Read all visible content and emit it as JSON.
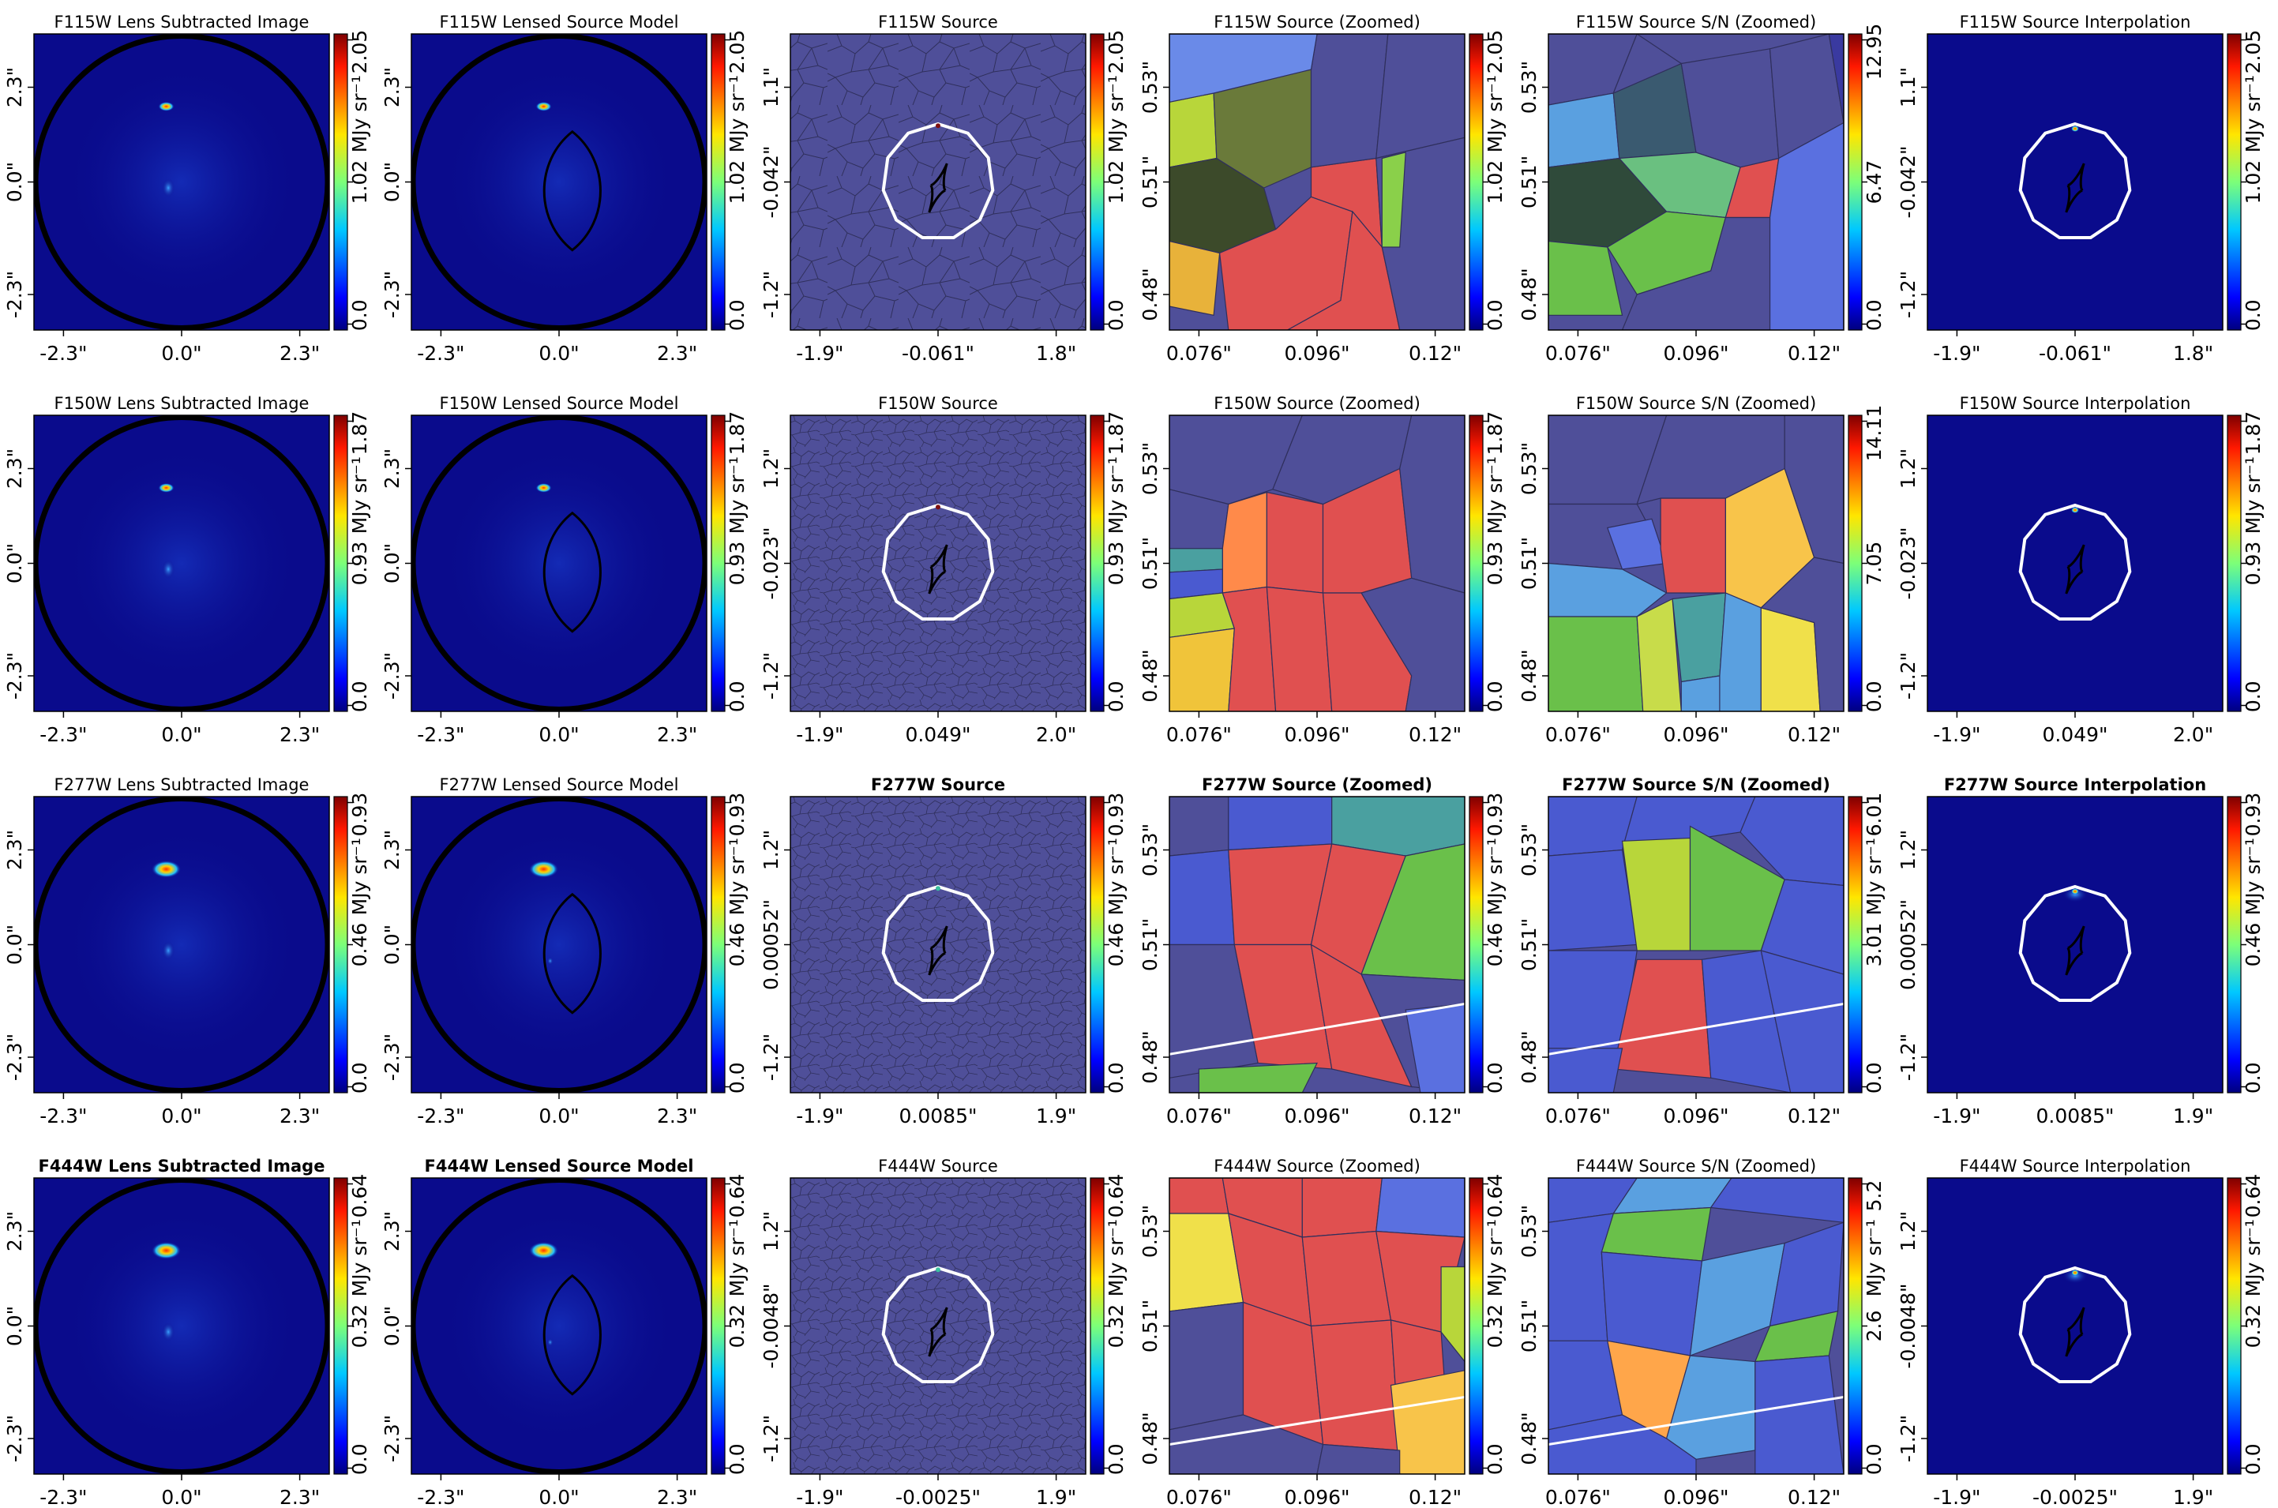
{
  "figure": {
    "rows": [
      {
        "band": "F115W",
        "panels": [
          {
            "title": "F115W Lens Subtracted Image",
            "bold": false,
            "kind": "image",
            "xticks": [
              "-2.3\"",
              "0.0\"",
              "2.3\""
            ],
            "yticks": [
              "2.3\"",
              "0.0\"",
              "-2.3\""
            ],
            "cbar": {
              "max": "2.05",
              "mid": "1.02",
              "min": "0.0",
              "label": "MJy sr⁻¹"
            }
          },
          {
            "title": "F115W Lensed Source Model",
            "bold": false,
            "kind": "model",
            "xticks": [
              "-2.3\"",
              "0.0\"",
              "2.3\""
            ],
            "yticks": [
              "2.3\"",
              "0.0\"",
              "-2.3\""
            ],
            "cbar": {
              "max": "2.05",
              "mid": "1.02",
              "min": "0.0",
              "label": "MJy sr⁻¹"
            }
          },
          {
            "title": "F115W Source",
            "bold": false,
            "kind": "source",
            "xticks": [
              "-1.9\"",
              "-0.061\"",
              "1.8\""
            ],
            "yticks": [
              "1.1\"",
              "-0.042\"",
              "-1.2\""
            ],
            "cbar": {
              "max": "2.05",
              "mid": "1.02",
              "min": "0.0",
              "label": "MJy sr⁻¹"
            }
          },
          {
            "title": "F115W Source (Zoomed)",
            "bold": false,
            "kind": "zoom",
            "xticks": [
              "0.076\"",
              "0.096\"",
              "0.12\""
            ],
            "yticks": [
              "0.53\"",
              "0.51\"",
              "0.48\""
            ],
            "cbar": {
              "max": "2.05",
              "mid": "1.02",
              "min": "0.0",
              "label": "MJy sr⁻¹"
            }
          },
          {
            "title": "F115W Source S/N (Zoomed)",
            "bold": false,
            "kind": "zoom",
            "xticks": [
              "0.076\"",
              "0.096\"",
              "0.12\""
            ],
            "yticks": [
              "0.53\"",
              "0.51\"",
              "0.48\""
            ],
            "cbar": {
              "max": "12.95",
              "mid": "6.47",
              "min": "0.0",
              "label": ""
            }
          },
          {
            "title": "F115W Source Interpolation",
            "bold": false,
            "kind": "interp",
            "xticks": [
              "-1.9\"",
              "-0.061\"",
              "1.8\""
            ],
            "yticks": [
              "1.1\"",
              "-0.042\"",
              "-1.2\""
            ],
            "cbar": {
              "max": "2.05",
              "mid": "1.02",
              "min": "0.0",
              "label": "MJy sr⁻¹"
            }
          }
        ]
      },
      {
        "band": "F150W",
        "panels": [
          {
            "title": "F150W Lens Subtracted Image",
            "bold": false,
            "kind": "image",
            "xticks": [
              "-2.3\"",
              "0.0\"",
              "2.3\""
            ],
            "yticks": [
              "2.3\"",
              "0.0\"",
              "-2.3\""
            ],
            "cbar": {
              "max": "1.87",
              "mid": "0.93",
              "min": "0.0",
              "label": "MJy sr⁻¹"
            }
          },
          {
            "title": "F150W Lensed Source Model",
            "bold": false,
            "kind": "model",
            "xticks": [
              "-2.3\"",
              "0.0\"",
              "2.3\""
            ],
            "yticks": [
              "2.3\"",
              "0.0\"",
              "-2.3\""
            ],
            "cbar": {
              "max": "1.87",
              "mid": "0.93",
              "min": "0.0",
              "label": "MJy sr⁻¹"
            }
          },
          {
            "title": "F150W Source",
            "bold": false,
            "kind": "source",
            "xticks": [
              "-1.9\"",
              "0.049\"",
              "2.0\""
            ],
            "yticks": [
              "1.2\"",
              "-0.023\"",
              "-1.2\""
            ],
            "cbar": {
              "max": "1.87",
              "mid": "0.93",
              "min": "0.0",
              "label": "MJy sr⁻¹"
            }
          },
          {
            "title": "F150W Source (Zoomed)",
            "bold": false,
            "kind": "zoom",
            "xticks": [
              "0.076\"",
              "0.096\"",
              "0.12\""
            ],
            "yticks": [
              "0.53\"",
              "0.51\"",
              "0.48\""
            ],
            "cbar": {
              "max": "1.87",
              "mid": "0.93",
              "min": "0.0",
              "label": "MJy sr⁻¹"
            }
          },
          {
            "title": "F150W Source S/N (Zoomed)",
            "bold": false,
            "kind": "zoom",
            "xticks": [
              "0.076\"",
              "0.096\"",
              "0.12\""
            ],
            "yticks": [
              "0.53\"",
              "0.51\"",
              "0.48\""
            ],
            "cbar": {
              "max": "14.11",
              "mid": "7.05",
              "min": "0.0",
              "label": ""
            }
          },
          {
            "title": "F150W Source Interpolation",
            "bold": false,
            "kind": "interp",
            "xticks": [
              "-1.9\"",
              "0.049\"",
              "2.0\""
            ],
            "yticks": [
              "1.2\"",
              "-0.023\"",
              "-1.2\""
            ],
            "cbar": {
              "max": "1.87",
              "mid": "0.93",
              "min": "0.0",
              "label": "MJy sr⁻¹"
            }
          }
        ]
      },
      {
        "band": "F277W",
        "panels": [
          {
            "title": "F277W Lens Subtracted Image",
            "bold": false,
            "kind": "image",
            "xticks": [
              "-2.3\"",
              "0.0\"",
              "2.3\""
            ],
            "yticks": [
              "2.3\"",
              "0.0\"",
              "-2.3\""
            ],
            "cbar": {
              "max": "0.93",
              "mid": "0.46",
              "min": "0.0",
              "label": "MJy sr⁻¹"
            }
          },
          {
            "title": "F277W Lensed Source Model",
            "bold": false,
            "kind": "model",
            "xticks": [
              "-2.3\"",
              "0.0\"",
              "2.3\""
            ],
            "yticks": [
              "2.3\"",
              "0.0\"",
              "-2.3\""
            ],
            "cbar": {
              "max": "0.93",
              "mid": "0.46",
              "min": "0.0",
              "label": "MJy sr⁻¹"
            }
          },
          {
            "title": "F277W Source",
            "bold": true,
            "kind": "source",
            "xticks": [
              "-1.9\"",
              "0.0085\"",
              "1.9\""
            ],
            "yticks": [
              "1.2\"",
              "0.00052\"",
              "-1.2\""
            ],
            "cbar": {
              "max": "0.93",
              "mid": "0.46",
              "min": "0.0",
              "label": "MJy sr⁻¹"
            }
          },
          {
            "title": "F277W Source (Zoomed)",
            "bold": true,
            "kind": "zoom",
            "xticks": [
              "0.076\"",
              "0.096\"",
              "0.12\""
            ],
            "yticks": [
              "0.53\"",
              "0.51\"",
              "0.48\""
            ],
            "cbar": {
              "max": "0.93",
              "mid": "0.46",
              "min": "0.0",
              "label": "MJy sr⁻¹"
            }
          },
          {
            "title": "F277W Source S/N (Zoomed)",
            "bold": true,
            "kind": "zoom",
            "xticks": [
              "0.076\"",
              "0.096\"",
              "0.12\""
            ],
            "yticks": [
              "0.53\"",
              "0.51\"",
              "0.48\""
            ],
            "cbar": {
              "max": "6.01",
              "mid": "3.01",
              "min": "0.0",
              "label": "MJy sr⁻¹"
            }
          },
          {
            "title": "F277W Source Interpolation",
            "bold": true,
            "kind": "interp",
            "xticks": [
              "-1.9\"",
              "0.0085\"",
              "1.9\""
            ],
            "yticks": [
              "1.2\"",
              "0.00052\"",
              "-1.2\""
            ],
            "cbar": {
              "max": "0.93",
              "mid": "0.46",
              "min": "0.0",
              "label": "MJy sr⁻¹"
            }
          }
        ]
      },
      {
        "band": "F444W",
        "panels": [
          {
            "title": "F444W Lens Subtracted Image",
            "bold": true,
            "kind": "image",
            "xticks": [
              "-2.3\"",
              "0.0\"",
              "2.3\""
            ],
            "yticks": [
              "2.3\"",
              "0.0\"",
              "-2.3\""
            ],
            "cbar": {
              "max": "0.64",
              "mid": "0.32",
              "min": "0.0",
              "label": "MJy sr⁻¹"
            }
          },
          {
            "title": "F444W Lensed Source Model",
            "bold": true,
            "kind": "model",
            "xticks": [
              "-2.3\"",
              "0.0\"",
              "2.3\""
            ],
            "yticks": [
              "2.3\"",
              "0.0\"",
              "-2.3\""
            ],
            "cbar": {
              "max": "0.64",
              "mid": "0.32",
              "min": "0.0",
              "label": "MJy sr⁻¹"
            }
          },
          {
            "title": "F444W Source",
            "bold": false,
            "kind": "source",
            "xticks": [
              "-1.9\"",
              "-0.0025\"",
              "1.9\""
            ],
            "yticks": [
              "1.2\"",
              "-0.0048\"",
              "-1.2\""
            ],
            "cbar": {
              "max": "0.64",
              "mid": "0.32",
              "min": "0.0",
              "label": "MJy sr⁻¹"
            }
          },
          {
            "title": "F444W Source (Zoomed)",
            "bold": false,
            "kind": "zoom",
            "xticks": [
              "0.076\"",
              "0.096\"",
              "0.12\""
            ],
            "yticks": [
              "0.53\"",
              "0.51\"",
              "0.48\""
            ],
            "cbar": {
              "max": "0.64",
              "mid": "0.32",
              "min": "0.0",
              "label": "MJy sr⁻¹"
            }
          },
          {
            "title": "F444W Source S/N (Zoomed)",
            "bold": false,
            "kind": "zoom",
            "xticks": [
              "0.076\"",
              "0.096\"",
              "0.12\""
            ],
            "yticks": [
              "0.53\"",
              "0.51\"",
              "0.48\""
            ],
            "cbar": {
              "max": "5.2",
              "mid": "2.6",
              "min": "0.0",
              "label": "MJy sr⁻¹"
            }
          },
          {
            "title": "F444W Source Interpolation",
            "bold": false,
            "kind": "interp",
            "xticks": [
              "-1.9\"",
              "-0.0025\"",
              "1.9\""
            ],
            "yticks": [
              "1.2\"",
              "-0.0048\"",
              "-1.2\""
            ],
            "cbar": {
              "max": "0.64",
              "mid": "0.32",
              "min": "0.0",
              "label": "MJy sr⁻¹"
            }
          }
        ]
      }
    ]
  },
  "colors": {
    "background_map": "#0a0b8c",
    "voronoi_fill": "#4f4f99",
    "voronoi_edge": "#2f2f5c",
    "caustic": "#ffffff",
    "critical_curve": "#000000",
    "colormap": "jet"
  },
  "chart_data": {
    "type": "heatmap",
    "layout": "4 rows x 6 columns of image panels",
    "bands": [
      "F115W",
      "F150W",
      "F277W",
      "F444W"
    ],
    "columns": [
      "Lens Subtracted Image",
      "Lensed Source Model",
      "Source",
      "Source (Zoomed)",
      "Source S/N (Zoomed)",
      "Source Interpolation"
    ],
    "colorbar_ranges": {
      "F115W": {
        "flux": [
          0.0,
          2.05
        ],
        "sn": [
          0.0,
          12.95
        ]
      },
      "F150W": {
        "flux": [
          0.0,
          1.87
        ],
        "sn": [
          0.0,
          14.11
        ]
      },
      "F277W": {
        "flux": [
          0.0,
          0.93
        ],
        "sn": [
          0.0,
          6.01
        ]
      },
      "F444W": {
        "flux": [
          0.0,
          0.64
        ],
        "sn": [
          0.0,
          5.2
        ]
      }
    },
    "colormap": "jet"
  }
}
